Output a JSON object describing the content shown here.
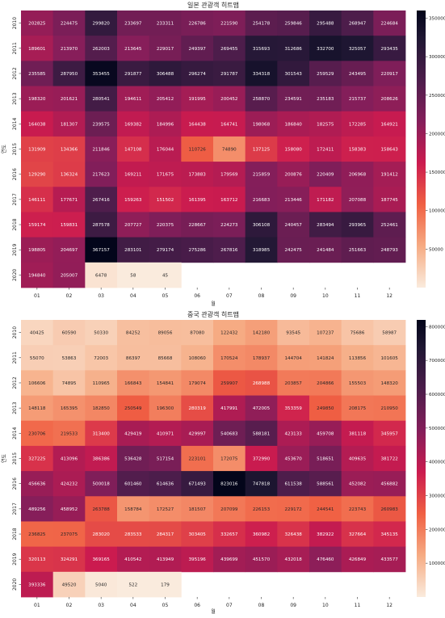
{
  "chart_data": [
    {
      "type": "heatmap",
      "title": "일본 관광객 히트맵",
      "xlabel": "월",
      "ylabel": "연도",
      "x": [
        "01",
        "02",
        "03",
        "04",
        "05",
        "06",
        "07",
        "08",
        "09",
        "10",
        "11",
        "12"
      ],
      "y": [
        "2010",
        "2011",
        "2012",
        "2013",
        "2014",
        "2015",
        "2016",
        "2017",
        "2018",
        "2019",
        "2020"
      ],
      "values": [
        [
          202825,
          224475,
          299820,
          233697,
          233311,
          226786,
          221590,
          254178,
          259846,
          295488,
          268947,
          224684
        ],
        [
          189601,
          213970,
          262003,
          213645,
          229017,
          249397,
          269455,
          315693,
          312686,
          332700,
          325057,
          293435
        ],
        [
          235585,
          287950,
          353455,
          291877,
          306488,
          296274,
          291787,
          334318,
          301543,
          259529,
          243495,
          220917
        ],
        [
          198320,
          201621,
          280541,
          194611,
          205412,
          191995,
          200452,
          258870,
          234591,
          235183,
          215737,
          208626
        ],
        [
          164038,
          181307,
          239575,
          169382,
          184996,
          164438,
          164741,
          198068,
          186840,
          182575,
          172285,
          164921
        ],
        [
          131909,
          134366,
          211846,
          147108,
          176044,
          110726,
          74890,
          137125,
          158080,
          172411,
          158383,
          158643
        ],
        [
          129290,
          136324,
          217623,
          169211,
          171675,
          173883,
          179569,
          215859,
          200876,
          220409,
          206968,
          191412
        ],
        [
          146111,
          177671,
          267416,
          159263,
          151502,
          161395,
          163712,
          216683,
          213446,
          171182,
          207088,
          187745
        ],
        [
          159174,
          159831,
          287578,
          207727,
          220375,
          228667,
          224273,
          306108,
          240457,
          283494,
          293965,
          252461
        ],
        [
          198805,
          204697,
          367157,
          283101,
          279174,
          275286,
          267816,
          318985,
          242475,
          241484,
          251663,
          248793
        ],
        [
          194840,
          205007,
          6478,
          58,
          45,
          null,
          null,
          null,
          null,
          null,
          null,
          null
        ]
      ],
      "colorbar": {
        "min": 0,
        "max": 360000,
        "ticks": [
          50000,
          100000,
          150000,
          200000,
          250000,
          300000,
          350000
        ]
      }
    },
    {
      "type": "heatmap",
      "title": "중국 관광객 히트맵",
      "xlabel": "월",
      "ylabel": "연도",
      "x": [
        "01",
        "02",
        "03",
        "04",
        "05",
        "06",
        "07",
        "08",
        "09",
        "10",
        "11",
        "12"
      ],
      "y": [
        "2010",
        "2011",
        "2012",
        "2013",
        "2014",
        "2015",
        "2016",
        "2017",
        "2018",
        "2019",
        "2020"
      ],
      "values": [
        [
          40425,
          60590,
          50330,
          84252,
          89056,
          87080,
          122432,
          142180,
          93545,
          107237,
          75686,
          58987
        ],
        [
          55070,
          53863,
          72003,
          86397,
          85668,
          108060,
          170524,
          178937,
          144704,
          141824,
          113856,
          101605
        ],
        [
          106606,
          74895,
          110965,
          166843,
          154841,
          179074,
          259907,
          268988,
          203857,
          204866,
          155503,
          148320
        ],
        [
          148118,
          165395,
          182850,
          250549,
          196300,
          280319,
          417991,
          472005,
          353359,
          249850,
          208175,
          210950
        ],
        [
          230706,
          219533,
          313400,
          429419,
          410971,
          429997,
          540683,
          588181,
          423133,
          459708,
          381118,
          345957
        ],
        [
          327225,
          413096,
          386386,
          536428,
          517154,
          223101,
          172075,
          372990,
          453670,
          518651,
          409635,
          381722
        ],
        [
          456636,
          424232,
          500018,
          601460,
          614636,
          671493,
          823016,
          747818,
          611538,
          588561,
          452082,
          456882
        ],
        [
          489256,
          458952,
          263788,
          158784,
          172527,
          181507,
          207099,
          226153,
          229172,
          244541,
          223743,
          260983
        ],
        [
          236825,
          237075,
          283020,
          283533,
          284317,
          303405,
          332657,
          360982,
          326438,
          382922,
          327664,
          345135
        ],
        [
          320113,
          324291,
          369165,
          410542,
          413949,
          395196,
          439699,
          451570,
          432018,
          476460,
          426849,
          433577
        ],
        [
          393336,
          49520,
          5040,
          522,
          179,
          null,
          null,
          null,
          null,
          null,
          null,
          null
        ]
      ],
      "colorbar": {
        "min": 0,
        "max": 820000,
        "ticks": [
          100000,
          200000,
          300000,
          400000,
          500000,
          600000,
          700000,
          800000
        ]
      }
    }
  ]
}
